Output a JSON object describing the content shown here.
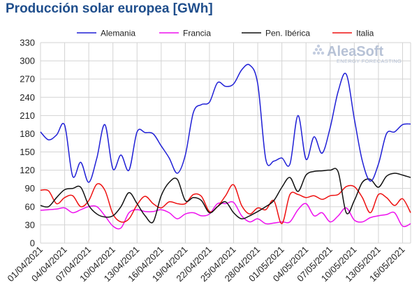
{
  "chart_data": {
    "type": "line",
    "title": "Producción solar europea [GWh]",
    "xlabel": "",
    "ylabel": "",
    "ylim": [
      0,
      330
    ],
    "yticks": [
      0,
      30,
      60,
      90,
      120,
      150,
      180,
      210,
      240,
      270,
      300,
      330
    ],
    "grid": true,
    "legend_position": "top",
    "x": [
      "01/04/2021",
      "02/04/2021",
      "03/04/2021",
      "04/04/2021",
      "05/04/2021",
      "06/04/2021",
      "07/04/2021",
      "08/04/2021",
      "09/04/2021",
      "10/04/2021",
      "11/04/2021",
      "12/04/2021",
      "13/04/2021",
      "14/04/2021",
      "15/04/2021",
      "16/04/2021",
      "17/04/2021",
      "18/04/2021",
      "19/04/2021",
      "20/04/2021",
      "21/04/2021",
      "22/04/2021",
      "23/04/2021",
      "24/04/2021",
      "25/04/2021",
      "26/04/2021",
      "27/04/2021",
      "28/04/2021",
      "29/04/2021",
      "30/04/2021",
      "01/05/2021",
      "02/05/2021",
      "03/05/2021",
      "04/05/2021",
      "05/05/2021",
      "06/05/2021",
      "07/05/2021",
      "08/05/2021",
      "09/05/2021",
      "10/05/2021",
      "11/05/2021",
      "12/05/2021",
      "13/05/2021",
      "14/05/2021",
      "15/05/2021",
      "16/05/2021",
      "17/05/2021"
    ],
    "xtick_labels": [
      "01/04/2021",
      "04/04/2021",
      "07/04/2021",
      "10/04/2021",
      "13/04/2021",
      "16/04/2021",
      "19/04/2021",
      "22/04/2021",
      "25/04/2021",
      "28/04/2021",
      "01/05/2021",
      "04/05/2021",
      "07/05/2021",
      "10/05/2021",
      "13/05/2021",
      "16/05/2021"
    ],
    "series": [
      {
        "name": "Alemania",
        "color": "#1f1fd6",
        "values": [
          183,
          170,
          178,
          194,
          110,
          133,
          100,
          140,
          195,
          122,
          145,
          120,
          183,
          182,
          180,
          160,
          140,
          115,
          145,
          215,
          228,
          232,
          264,
          258,
          262,
          285,
          293,
          262,
          138,
          135,
          140,
          130,
          210,
          138,
          175,
          148,
          190,
          250,
          278,
          205,
          135,
          102,
          130,
          180,
          183,
          195,
          196
        ]
      },
      {
        "name": "Francia",
        "color": "#ee11ee",
        "values": [
          54,
          55,
          56,
          58,
          50,
          55,
          60,
          60,
          45,
          28,
          25,
          50,
          55,
          52,
          52,
          55,
          50,
          40,
          48,
          50,
          45,
          48,
          65,
          65,
          67,
          45,
          35,
          40,
          32,
          33,
          35,
          35,
          55,
          65,
          45,
          50,
          35,
          45,
          58,
          38,
          35,
          42,
          45,
          47,
          50,
          28,
          32
        ]
      },
      {
        "name": "Pen. Ibérica",
        "color": "#111111",
        "values": [
          62,
          60,
          75,
          88,
          90,
          92,
          62,
          48,
          43,
          45,
          60,
          83,
          65,
          45,
          35,
          78,
          100,
          105,
          70,
          75,
          70,
          50,
          60,
          68,
          50,
          40,
          45,
          52,
          60,
          70,
          92,
          108,
          85,
          112,
          118,
          119,
          120,
          117,
          50,
          70,
          100,
          105,
          92,
          110,
          115,
          112,
          108
        ]
      },
      {
        "name": "Italia",
        "color": "#ee1111",
        "values": [
          87,
          86,
          65,
          75,
          78,
          60,
          70,
          97,
          87,
          48,
          35,
          40,
          63,
          77,
          65,
          58,
          68,
          65,
          65,
          80,
          77,
          52,
          60,
          78,
          96,
          62,
          48,
          58,
          55,
          70,
          32,
          80,
          80,
          75,
          78,
          72,
          78,
          80,
          93,
          93,
          75,
          50,
          80,
          75,
          62,
          73,
          50
        ]
      }
    ]
  },
  "logo": {
    "name": "AleaSoft",
    "tagline": "ENERGY FORECASTING"
  }
}
